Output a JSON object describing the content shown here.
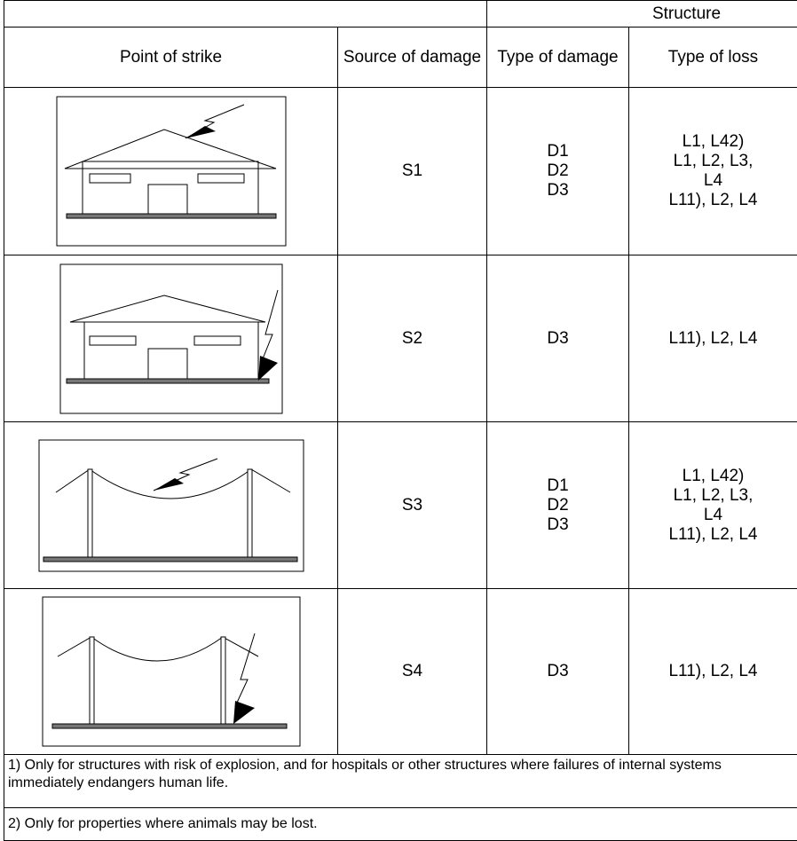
{
  "table": {
    "header": {
      "group": "Structure",
      "columns": [
        "Point of strike",
        "Source of damage",
        "Type of damage",
        "Type of loss"
      ]
    },
    "rows": [
      {
        "source": "S1",
        "damage": [
          "D1",
          "D2",
          "D3"
        ],
        "loss": [
          "L1, L42)",
          "L1, L2, L3,",
          "L4",
          "L11), L2, L4"
        ]
      },
      {
        "source": "S2",
        "damage": [
          "D3"
        ],
        "loss": [
          "L11), L2, L4"
        ]
      },
      {
        "source": "S3",
        "damage": [
          "D1",
          "D2",
          "D3"
        ],
        "loss": [
          "L1, L42)",
          "L1, L2, L3,",
          "L4",
          "L11), L2, L4"
        ]
      },
      {
        "source": "S4",
        "damage": [
          "D3"
        ],
        "loss": [
          "L11), L2, L4"
        ]
      }
    ],
    "footnotes": [
      "1)  Only for structures with risk of explosion, and for hospitals or other structures where failures of internal systems immediately endangers human life.",
      "2)  Only for properties where animals may be lost."
    ]
  }
}
